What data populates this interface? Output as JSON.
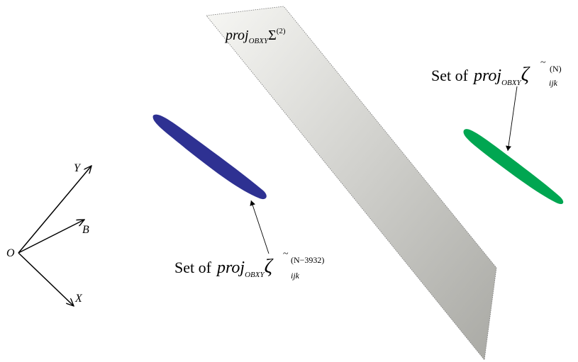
{
  "axes": {
    "origin": "O",
    "x": "X",
    "y": "Y",
    "b": "B"
  },
  "plane": {
    "label_main": "proj",
    "label_sub": "OBXY",
    "label_symbol": "Σ",
    "label_sup": "(2)",
    "color_light": "#f7f7f4",
    "color_dark": "#a9a9a4"
  },
  "set_left": {
    "prefix": "Set of",
    "proj": "proj",
    "sub": "OBXY",
    "zeta": "ζ",
    "tilde": "~",
    "index": "ijk",
    "sup": "(N−3932)",
    "color": "#2e3192"
  },
  "set_right": {
    "prefix": "Set of",
    "proj": "proj",
    "sub": "OBXY",
    "zeta": "ζ",
    "tilde": "~",
    "index": "ijk",
    "sup": "(N)",
    "color": "#00a651"
  }
}
